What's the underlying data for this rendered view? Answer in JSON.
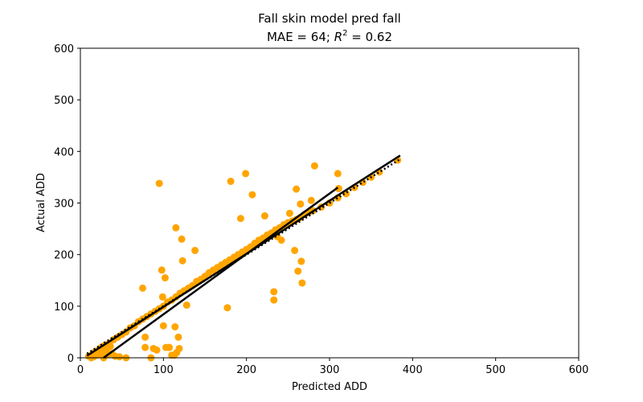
{
  "chart_data": {
    "type": "scatter",
    "title": "Fall skin model pred fall",
    "subtitle_prefix": "MAE = 64; ",
    "subtitle_r_symbol": "R",
    "subtitle_r_exponent": "2",
    "subtitle_suffix": " = 0.62",
    "xlabel": "Predicted ADD",
    "ylabel": "Actual ADD",
    "xlim": [
      0,
      600
    ],
    "ylim": [
      0,
      600
    ],
    "xticks": [
      "0",
      "100",
      "200",
      "300",
      "400",
      "500",
      "600"
    ],
    "yticks": [
      "0",
      "100",
      "200",
      "300",
      "400",
      "500",
      "600"
    ],
    "grid": false,
    "point_color": "#ffa500",
    "line_color": "#000000",
    "points": [
      [
        10,
        3
      ],
      [
        15,
        8
      ],
      [
        18,
        12
      ],
      [
        22,
        15
      ],
      [
        25,
        20
      ],
      [
        28,
        22
      ],
      [
        30,
        25
      ],
      [
        35,
        28
      ],
      [
        40,
        35
      ],
      [
        45,
        40
      ],
      [
        50,
        45
      ],
      [
        55,
        50
      ],
      [
        60,
        58
      ],
      [
        65,
        62
      ],
      [
        70,
        70
      ],
      [
        75,
        75
      ],
      [
        80,
        80
      ],
      [
        85,
        85
      ],
      [
        90,
        90
      ],
      [
        95,
        95
      ],
      [
        100,
        100
      ],
      [
        105,
        108
      ],
      [
        110,
        112
      ],
      [
        115,
        118
      ],
      [
        120,
        125
      ],
      [
        125,
        130
      ],
      [
        130,
        135
      ],
      [
        135,
        140
      ],
      [
        140,
        148
      ],
      [
        145,
        152
      ],
      [
        150,
        158
      ],
      [
        155,
        165
      ],
      [
        160,
        170
      ],
      [
        165,
        175
      ],
      [
        170,
        180
      ],
      [
        175,
        185
      ],
      [
        180,
        190
      ],
      [
        185,
        195
      ],
      [
        190,
        200
      ],
      [
        195,
        205
      ],
      [
        200,
        210
      ],
      [
        205,
        215
      ],
      [
        210,
        222
      ],
      [
        215,
        228
      ],
      [
        220,
        232
      ],
      [
        225,
        238
      ],
      [
        230,
        242
      ],
      [
        235,
        248
      ],
      [
        240,
        252
      ],
      [
        245,
        258
      ],
      [
        250,
        262
      ],
      [
        255,
        265
      ],
      [
        260,
        268
      ],
      [
        265,
        272
      ],
      [
        270,
        278
      ],
      [
        275,
        282
      ],
      [
        280,
        285
      ],
      [
        290,
        292
      ],
      [
        300,
        300
      ],
      [
        310,
        310
      ],
      [
        320,
        318
      ],
      [
        330,
        330
      ],
      [
        340,
        340
      ],
      [
        350,
        350
      ],
      [
        360,
        360
      ],
      [
        382,
        383
      ],
      [
        13,
        0
      ],
      [
        16,
        2
      ],
      [
        20,
        5
      ],
      [
        23,
        10
      ],
      [
        26,
        13
      ],
      [
        32,
        18
      ],
      [
        36,
        22
      ],
      [
        38,
        8
      ],
      [
        42,
        3
      ],
      [
        47,
        2
      ],
      [
        55,
        0
      ],
      [
        28,
        0
      ],
      [
        33,
        6
      ],
      [
        75,
        135
      ],
      [
        78,
        40
      ],
      [
        78,
        20
      ],
      [
        85,
        0
      ],
      [
        88,
        18
      ],
      [
        92,
        15
      ],
      [
        95,
        338
      ],
      [
        98,
        170
      ],
      [
        99,
        118
      ],
      [
        100,
        62
      ],
      [
        102,
        155
      ],
      [
        103,
        20
      ],
      [
        107,
        20
      ],
      [
        110,
        5
      ],
      [
        113,
        5
      ],
      [
        114,
        60
      ],
      [
        115,
        252
      ],
      [
        116,
        10
      ],
      [
        118,
        40
      ],
      [
        119,
        18
      ],
      [
        122,
        230
      ],
      [
        123,
        188
      ],
      [
        128,
        102
      ],
      [
        138,
        208
      ],
      [
        177,
        97
      ],
      [
        181,
        342
      ],
      [
        193,
        270
      ],
      [
        199,
        357
      ],
      [
        207,
        316
      ],
      [
        222,
        275
      ],
      [
        233,
        128
      ],
      [
        233,
        112
      ],
      [
        237,
        235
      ],
      [
        242,
        228
      ],
      [
        252,
        280
      ],
      [
        258,
        208
      ],
      [
        260,
        327
      ],
      [
        262,
        168
      ],
      [
        265,
        298
      ],
      [
        266,
        187
      ],
      [
        267,
        145
      ],
      [
        278,
        305
      ],
      [
        282,
        372
      ],
      [
        310,
        357
      ],
      [
        311,
        328
      ]
    ],
    "regression_lines": [
      {
        "name": "fit-1",
        "x": [
          8,
          385
        ],
        "y": [
          4,
          392
        ]
      },
      {
        "name": "fit-2",
        "x": [
          28,
          310
        ],
        "y": [
          0,
          330
        ]
      }
    ],
    "identity_line": {
      "x": [
        8,
        385
      ],
      "y": [
        8,
        385
      ]
    }
  }
}
